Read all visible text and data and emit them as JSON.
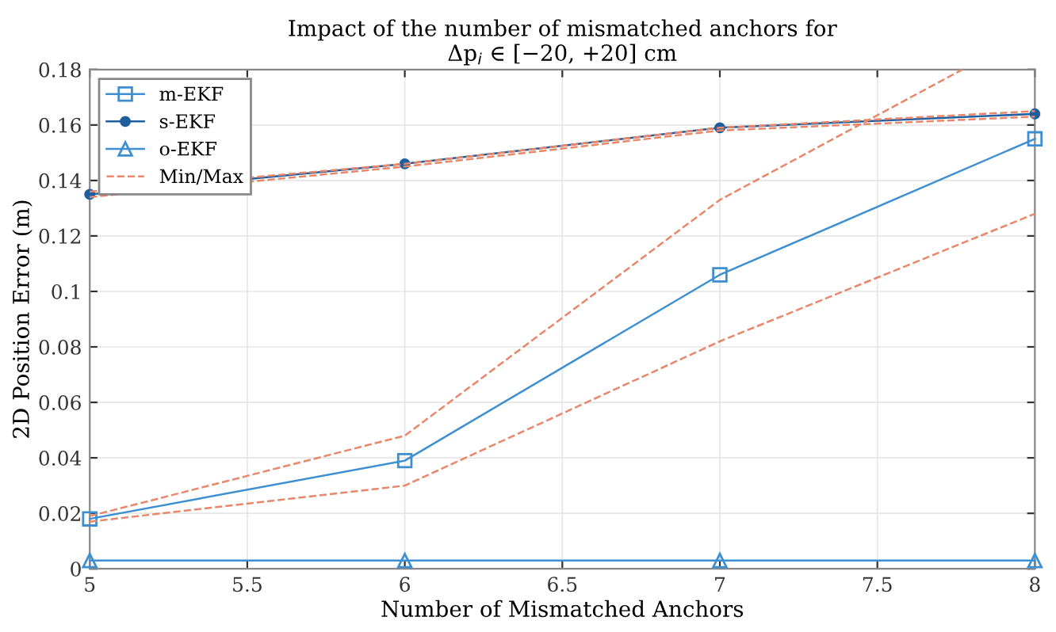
{
  "chart_data": {
    "type": "line",
    "title": "Impact of the number of mismatched anchors for\nΔp$_{i}$ ∈ [−20, +20] cm",
    "xlabel": "Number of Mismatched Anchors",
    "ylabel": "2D Position Error (m)",
    "x": [
      5,
      6,
      7,
      8
    ],
    "xlim": [
      5,
      8
    ],
    "xticks": [
      5,
      5.5,
      6,
      6.5,
      7,
      7.5,
      8
    ],
    "ylim": [
      0,
      0.18
    ],
    "yticks": [
      0,
      0.02,
      0.04,
      0.06,
      0.08,
      0.1,
      0.12,
      0.14,
      0.16,
      0.18
    ],
    "grid": true,
    "legend": "top left",
    "series": [
      {
        "name": "m-EKF",
        "color": "#3d8fd1",
        "marker": "square",
        "line_style": "solid",
        "values": [
          0.018,
          0.039,
          0.106,
          0.155
        ]
      },
      {
        "name": "s-EKF",
        "color": "#1f5f9f",
        "marker": "circle",
        "line_style": "solid",
        "values": [
          0.135,
          0.146,
          0.159,
          0.164
        ]
      },
      {
        "name": "o-EKF",
        "color": "#3d8fd1",
        "marker": "triangle",
        "line_style": "solid",
        "values": [
          0.003,
          0.003,
          0.003,
          0.003
        ]
      },
      {
        "name": "Min/Max",
        "color": "#e8876a",
        "marker": "none",
        "line_style": "dashed",
        "x": [
          5,
          6,
          7,
          7.77
        ],
        "values": [
          0.019,
          0.048,
          0.133,
          0.18
        ]
      },
      {
        "color": "#e8876a",
        "marker": "none",
        "line_style": "dashed",
        "values": [
          0.017,
          0.03,
          0.082,
          0.128
        ]
      },
      {
        "color": "#e8876a",
        "marker": "none",
        "line_style": "dashed",
        "values": [
          0.136,
          0.146,
          0.159,
          0.165
        ]
      },
      {
        "color": "#e8876a",
        "marker": "none",
        "line_style": "dashed",
        "values": [
          0.134,
          0.145,
          0.158,
          0.163
        ]
      }
    ]
  }
}
